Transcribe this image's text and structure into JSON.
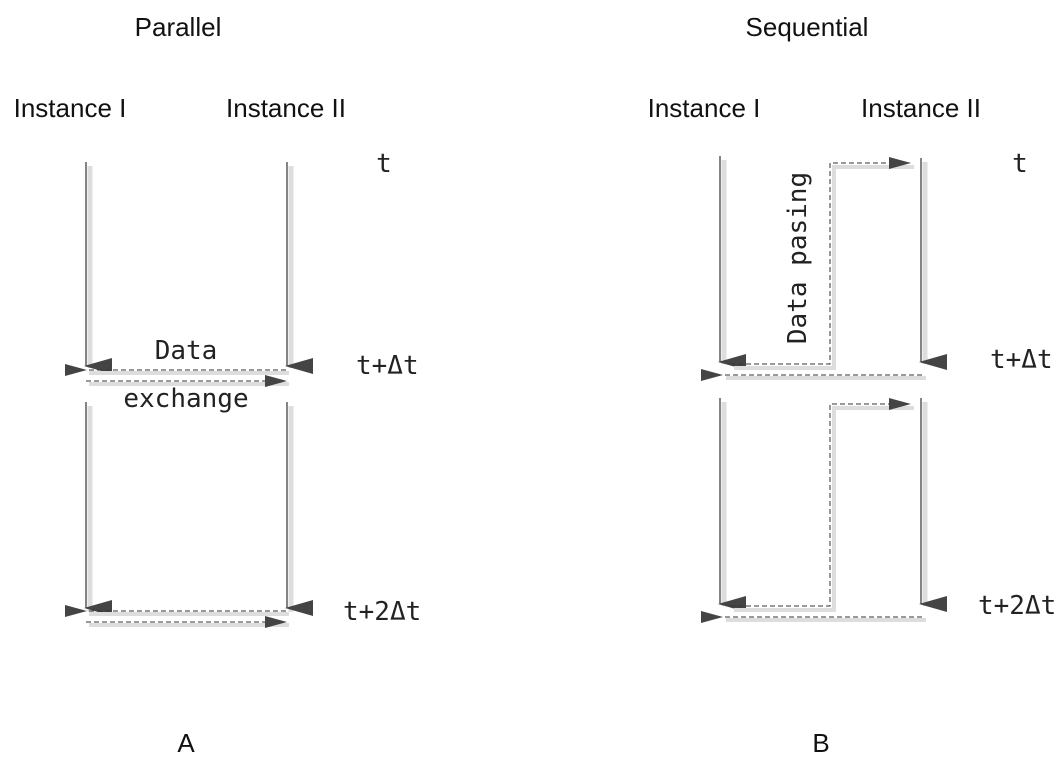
{
  "panels": {
    "parallel": {
      "title": "Parallel",
      "instance_1": "Instance I",
      "instance_2": "Instance II",
      "exchange_label_line1": "Data",
      "exchange_label_line2": "exchange",
      "caption": "A"
    },
    "sequential": {
      "title": "Sequential",
      "instance_1": "Instance I",
      "instance_2": "Instance II",
      "passing_label": "Data pasing",
      "caption": "B"
    }
  },
  "time_labels": {
    "t0": "t",
    "t1": "t+Δt",
    "t2": "t+2Δt"
  }
}
